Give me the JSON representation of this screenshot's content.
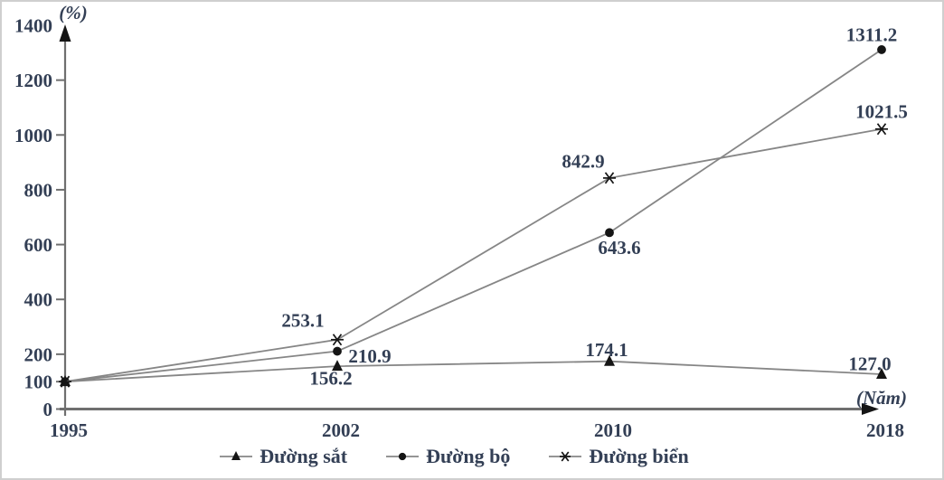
{
  "chart_data": {
    "type": "line",
    "title": "",
    "y_axis_label": "(%)",
    "x_axis_label": "(Năm)",
    "categories": [
      "1995",
      "2002",
      "2010",
      "2018"
    ],
    "y_ticks": [
      0,
      100,
      200,
      400,
      600,
      800,
      1000,
      1200,
      1400
    ],
    "ylim": [
      0,
      1400
    ],
    "grid": false,
    "legend_position": "bottom-center",
    "series": [
      {
        "name": "Đường sắt",
        "marker": "triangle",
        "values": [
          100,
          156.2,
          174.1,
          127.0
        ],
        "labels": [
          null,
          "156.2",
          "174.1",
          "127.0"
        ],
        "label_offsets": [
          null,
          [
            -7,
            13
          ],
          [
            -3,
            -13
          ],
          [
            -13,
            -12
          ]
        ]
      },
      {
        "name": "Đường bộ",
        "marker": "circle",
        "values": [
          100,
          210.9,
          643.6,
          1311.2
        ],
        "labels": [
          null,
          "210.9",
          "643.6",
          "1311.2"
        ],
        "label_offsets": [
          null,
          [
            36,
            5
          ],
          [
            11,
            16
          ],
          [
            -11,
            -17
          ]
        ]
      },
      {
        "name": "Đường biển",
        "marker": "asterisk",
        "values": [
          100,
          253.1,
          842.9,
          1021.5
        ],
        "labels": [
          null,
          "253.1",
          "842.9",
          "1021.5"
        ],
        "label_offsets": [
          null,
          [
            -38,
            -22
          ],
          [
            -29,
            -19
          ],
          [
            0,
            -20
          ]
        ]
      }
    ]
  },
  "colors": {
    "line": "#868686",
    "axis": "#6f6f6f",
    "marker": "#151515",
    "text": "#333f55",
    "frame": "#cfcfcf"
  }
}
